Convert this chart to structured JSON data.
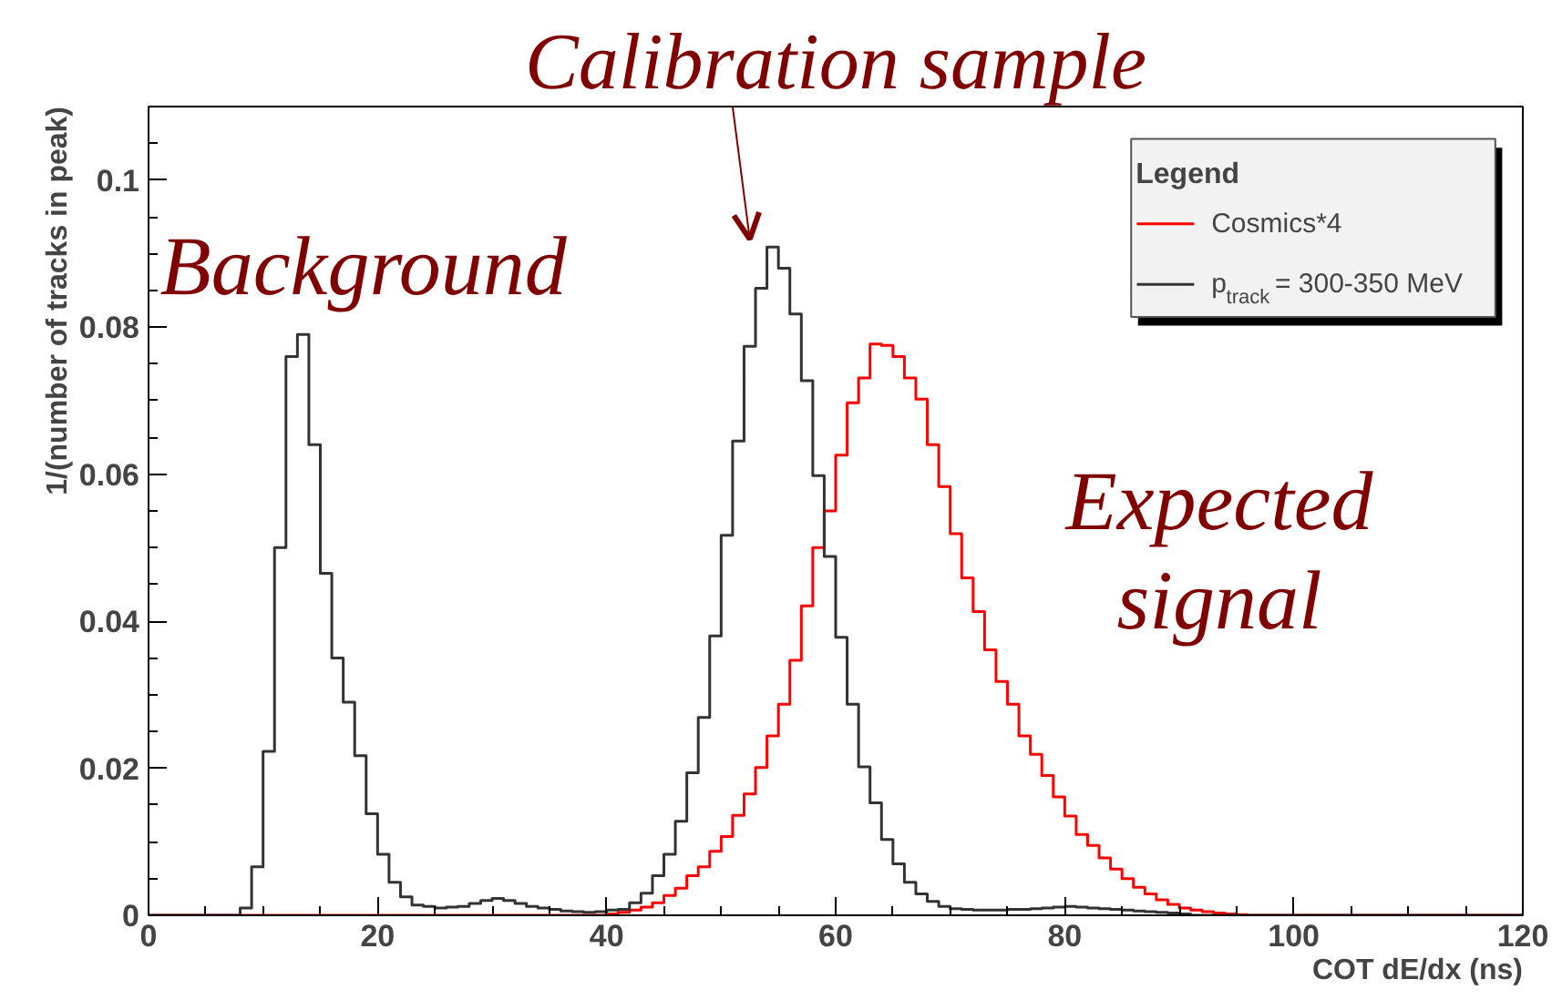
{
  "chart_data": {
    "type": "histogram",
    "xlabel": "COT dE/dx (ns)",
    "ylabel": "1/(number of tracks in peak)",
    "legend_title": "Legend",
    "legend": "top right",
    "grid": false,
    "xlim": [
      0,
      120
    ],
    "xticks": [
      0,
      20,
      40,
      60,
      80,
      100,
      120
    ],
    "ylim": [
      0,
      0.11
    ],
    "yticks": [
      0,
      0.02,
      0.04,
      0.06,
      0.08,
      0.1
    ],
    "bins": [
      0,
      1,
      2,
      3,
      4,
      5,
      6,
      7,
      8,
      9,
      10,
      11,
      12,
      13,
      14,
      15,
      16,
      17,
      18,
      19,
      20,
      21,
      22,
      23,
      24,
      25,
      26,
      27,
      28,
      29,
      30,
      31,
      32,
      33,
      34,
      35,
      36,
      37,
      38,
      39,
      40,
      41,
      42,
      43,
      44,
      45,
      46,
      47,
      48,
      49,
      50,
      51,
      52,
      53,
      54,
      55,
      56,
      57,
      58,
      59,
      60,
      61,
      62,
      63,
      64,
      65,
      66,
      67,
      68,
      69,
      70,
      71,
      72,
      73,
      74,
      75,
      76,
      77,
      78,
      79,
      80,
      81,
      82,
      83,
      84,
      85,
      86,
      87,
      88,
      89,
      90,
      91,
      92,
      93,
      94,
      95,
      96,
      97,
      98,
      99,
      100,
      101,
      102,
      103,
      104,
      105,
      106,
      107,
      108,
      109,
      110,
      111,
      112,
      113,
      114,
      115,
      116,
      117,
      118,
      119,
      120
    ],
    "series": [
      {
        "name": "Cosmics*4",
        "color": "#ff0000",
        "values": [
          0,
          0,
          0,
          0,
          0,
          0,
          0,
          0,
          0,
          0,
          0,
          0,
          0,
          0,
          0,
          0,
          0,
          0,
          0,
          0,
          0,
          0,
          0,
          0,
          0,
          0,
          0,
          0,
          0,
          0,
          0,
          0,
          0,
          0,
          0,
          0,
          0,
          0,
          0,
          0,
          0.0002,
          0.0004,
          0.0007,
          0.0011,
          0.0017,
          0.0027,
          0.0037,
          0.0054,
          0.0066,
          0.0087,
          0.0107,
          0.0136,
          0.0165,
          0.0201,
          0.0244,
          0.0287,
          0.0347,
          0.0421,
          0.05,
          0.055,
          0.0626,
          0.0697,
          0.0731,
          0.0777,
          0.0775,
          0.076,
          0.0731,
          0.0702,
          0.064,
          0.0583,
          0.0519,
          0.0459,
          0.0413,
          0.0361,
          0.0318,
          0.0287,
          0.0244,
          0.0219,
          0.019,
          0.0161,
          0.0135,
          0.011,
          0.0095,
          0.0078,
          0.0063,
          0.005,
          0.0038,
          0.0029,
          0.0021,
          0.0015,
          0.001,
          0.0007,
          0.0005,
          0.0003,
          0.0002,
          0.0001,
          0,
          0,
          0,
          0,
          0,
          0,
          0,
          0,
          0,
          0,
          0,
          0,
          0,
          0,
          0,
          0,
          0,
          0,
          0,
          0,
          0,
          0,
          0,
          0
        ]
      },
      {
        "name": "p$_{track}$ = 300-350 MeV",
        "color": "#333333",
        "values": [
          0,
          0,
          0,
          0,
          0,
          0,
          0,
          0,
          0.001,
          0.0066,
          0.0223,
          0.05,
          0.076,
          0.079,
          0.064,
          0.0465,
          0.035,
          0.029,
          0.0217,
          0.0138,
          0.0083,
          0.0045,
          0.0025,
          0.0014,
          0.0012,
          0.001,
          0.0011,
          0.0012,
          0.0016,
          0.002,
          0.0023,
          0.002,
          0.0016,
          0.0012,
          0.001,
          0.0008,
          0.0006,
          0.0005,
          0.0004,
          0.0005,
          0.0007,
          0.0008,
          0.0017,
          0.003,
          0.0054,
          0.0083,
          0.0128,
          0.0194,
          0.0269,
          0.038,
          0.0517,
          0.0645,
          0.0774,
          0.0853,
          0.0909,
          0.088,
          0.0818,
          0.0727,
          0.0598,
          0.0488,
          0.0378,
          0.0287,
          0.0202,
          0.0153,
          0.0103,
          0.007,
          0.0045,
          0.0029,
          0.0019,
          0.0012,
          0.0009,
          0.0008,
          0.0007,
          0.0007,
          0.0007,
          0.0008,
          0.0008,
          0.0009,
          0.001,
          0.0011,
          0.0012,
          0.0011,
          0.001,
          0.0009,
          0.0008,
          0.0007,
          0.0006,
          0.0005,
          0.0004,
          0.0003,
          0.0002,
          0,
          0,
          0,
          0,
          0,
          0,
          0,
          0,
          0,
          0,
          0,
          0,
          0,
          0,
          0,
          0,
          0,
          0,
          0,
          0,
          0,
          0,
          0,
          0,
          0,
          0,
          0,
          0,
          0
        ]
      }
    ],
    "annotations": [
      "Background",
      "Calibration sample",
      "Expected signal"
    ]
  }
}
